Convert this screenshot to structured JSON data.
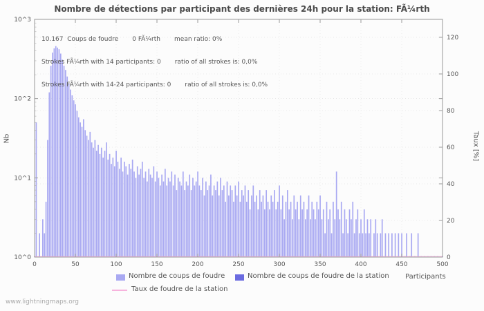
{
  "title": "Nombre de détections par participant des dernières 24h pour la station: FÃ¼rth",
  "annotations": {
    "line1": "10.167  Coups de foudre       0 FÃ¼rth       mean ratio: 0%",
    "line2": "Strokes FÃ¼rth with 14 participants: 0       ratio of all strokes is: 0,0%",
    "line3": "Strokes FÃ¼rth with 14-24 participants: 0       ratio of all strokes is: 0,0%"
  },
  "axes": {
    "y_left_label": "Nb",
    "y_right_label": "Taux [%]",
    "x_axis_label": "Participants",
    "y_left_ticks": [
      "10^0",
      "10^1",
      "10^2",
      "10^3"
    ],
    "y_right_ticks": [
      "0",
      "20",
      "40",
      "60",
      "80",
      "100",
      "120"
    ],
    "x_ticks": [
      "0",
      "50",
      "100",
      "150",
      "200",
      "250",
      "300",
      "350",
      "400",
      "450",
      "500"
    ]
  },
  "legend": {
    "items": [
      {
        "label": "Nombre de coups de foudre"
      },
      {
        "label": "Nombre de coups de foudre de la station"
      },
      {
        "label": "Taux de foudre de la station"
      }
    ]
  },
  "footer": "www.lightningmaps.org",
  "colors": {
    "bars": "#a9a9f2",
    "station_bars": "#6b6be0",
    "ratio_line": "#f7b3dd",
    "axis": "#999999",
    "grid": "#e4e4e4",
    "text": "#555555"
  },
  "chart_data": {
    "type": "bar",
    "title": "Nombre de détections par participant des dernières 24h pour la station: FÃ¼rth",
    "xlabel": "Participants",
    "ylabel_left": "Nb",
    "ylabel_right": "Taux [%]",
    "y_scale": "log10",
    "ylim_left": [
      1,
      1000
    ],
    "ylim_right": [
      0,
      120
    ],
    "xlim": [
      0,
      500
    ],
    "grid": true,
    "legend_position": "bottom",
    "series": [
      {
        "name": "Nombre de coups de foudre",
        "type": "bar",
        "x_start": 0,
        "x_step": 2,
        "values": [
          1,
          50,
          0,
          2,
          0,
          3,
          2,
          5,
          30,
          120,
          260,
          380,
          430,
          460,
          440,
          420,
          370,
          310,
          260,
          230,
          190,
          155,
          130,
          110,
          95,
          85,
          70,
          58,
          50,
          44,
          55,
          40,
          34,
          30,
          38,
          28,
          24,
          30,
          22,
          26,
          20,
          24,
          18,
          22,
          28,
          17,
          20,
          15,
          18,
          14,
          22,
          16,
          13,
          18,
          12,
          16,
          14,
          11,
          15,
          13,
          17,
          12,
          10,
          14,
          11,
          13,
          16,
          10,
          12,
          9,
          13,
          11,
          10,
          14,
          9,
          12,
          10,
          8,
          11,
          9,
          13,
          8,
          10,
          9,
          12,
          8,
          11,
          7,
          10,
          9,
          8,
          12,
          7,
          9,
          8,
          11,
          7,
          10,
          8,
          9,
          12,
          8,
          7,
          10,
          6,
          9,
          7,
          8,
          11,
          6,
          8,
          7,
          9,
          6,
          10,
          7,
          8,
          5,
          9,
          6,
          8,
          7,
          5,
          8,
          6,
          9,
          5,
          7,
          6,
          8,
          5,
          7,
          4,
          6,
          8,
          5,
          6,
          4,
          7,
          5,
          6,
          4,
          7,
          5,
          4,
          6,
          5,
          7,
          4,
          5,
          8,
          4,
          6,
          3,
          5,
          7,
          4,
          5,
          3,
          6,
          4,
          5,
          3,
          6,
          4,
          5,
          3,
          4,
          6,
          3,
          5,
          4,
          3,
          5,
          4,
          6,
          3,
          4,
          2,
          5,
          3,
          4,
          2,
          5,
          3,
          12,
          4,
          3,
          5,
          2,
          4,
          3,
          2,
          4,
          3,
          5,
          2,
          3,
          4,
          2,
          3,
          2,
          4,
          2,
          3,
          2,
          3,
          0,
          2,
          3,
          2,
          0,
          2,
          3,
          0,
          2,
          0,
          2,
          0,
          2,
          0,
          2,
          0,
          2,
          0,
          2,
          0,
          1,
          2,
          0,
          1,
          2,
          0,
          1,
          0,
          2,
          0,
          1,
          0,
          1,
          0,
          1,
          0,
          1,
          0,
          1,
          0,
          1,
          0,
          0,
          1
        ]
      },
      {
        "name": "Nombre de coups de foudre de la station",
        "type": "bar",
        "constant_value": 0
      },
      {
        "name": "Taux de foudre de la station",
        "type": "line",
        "axis": "right",
        "constant_value": 0
      }
    ]
  }
}
